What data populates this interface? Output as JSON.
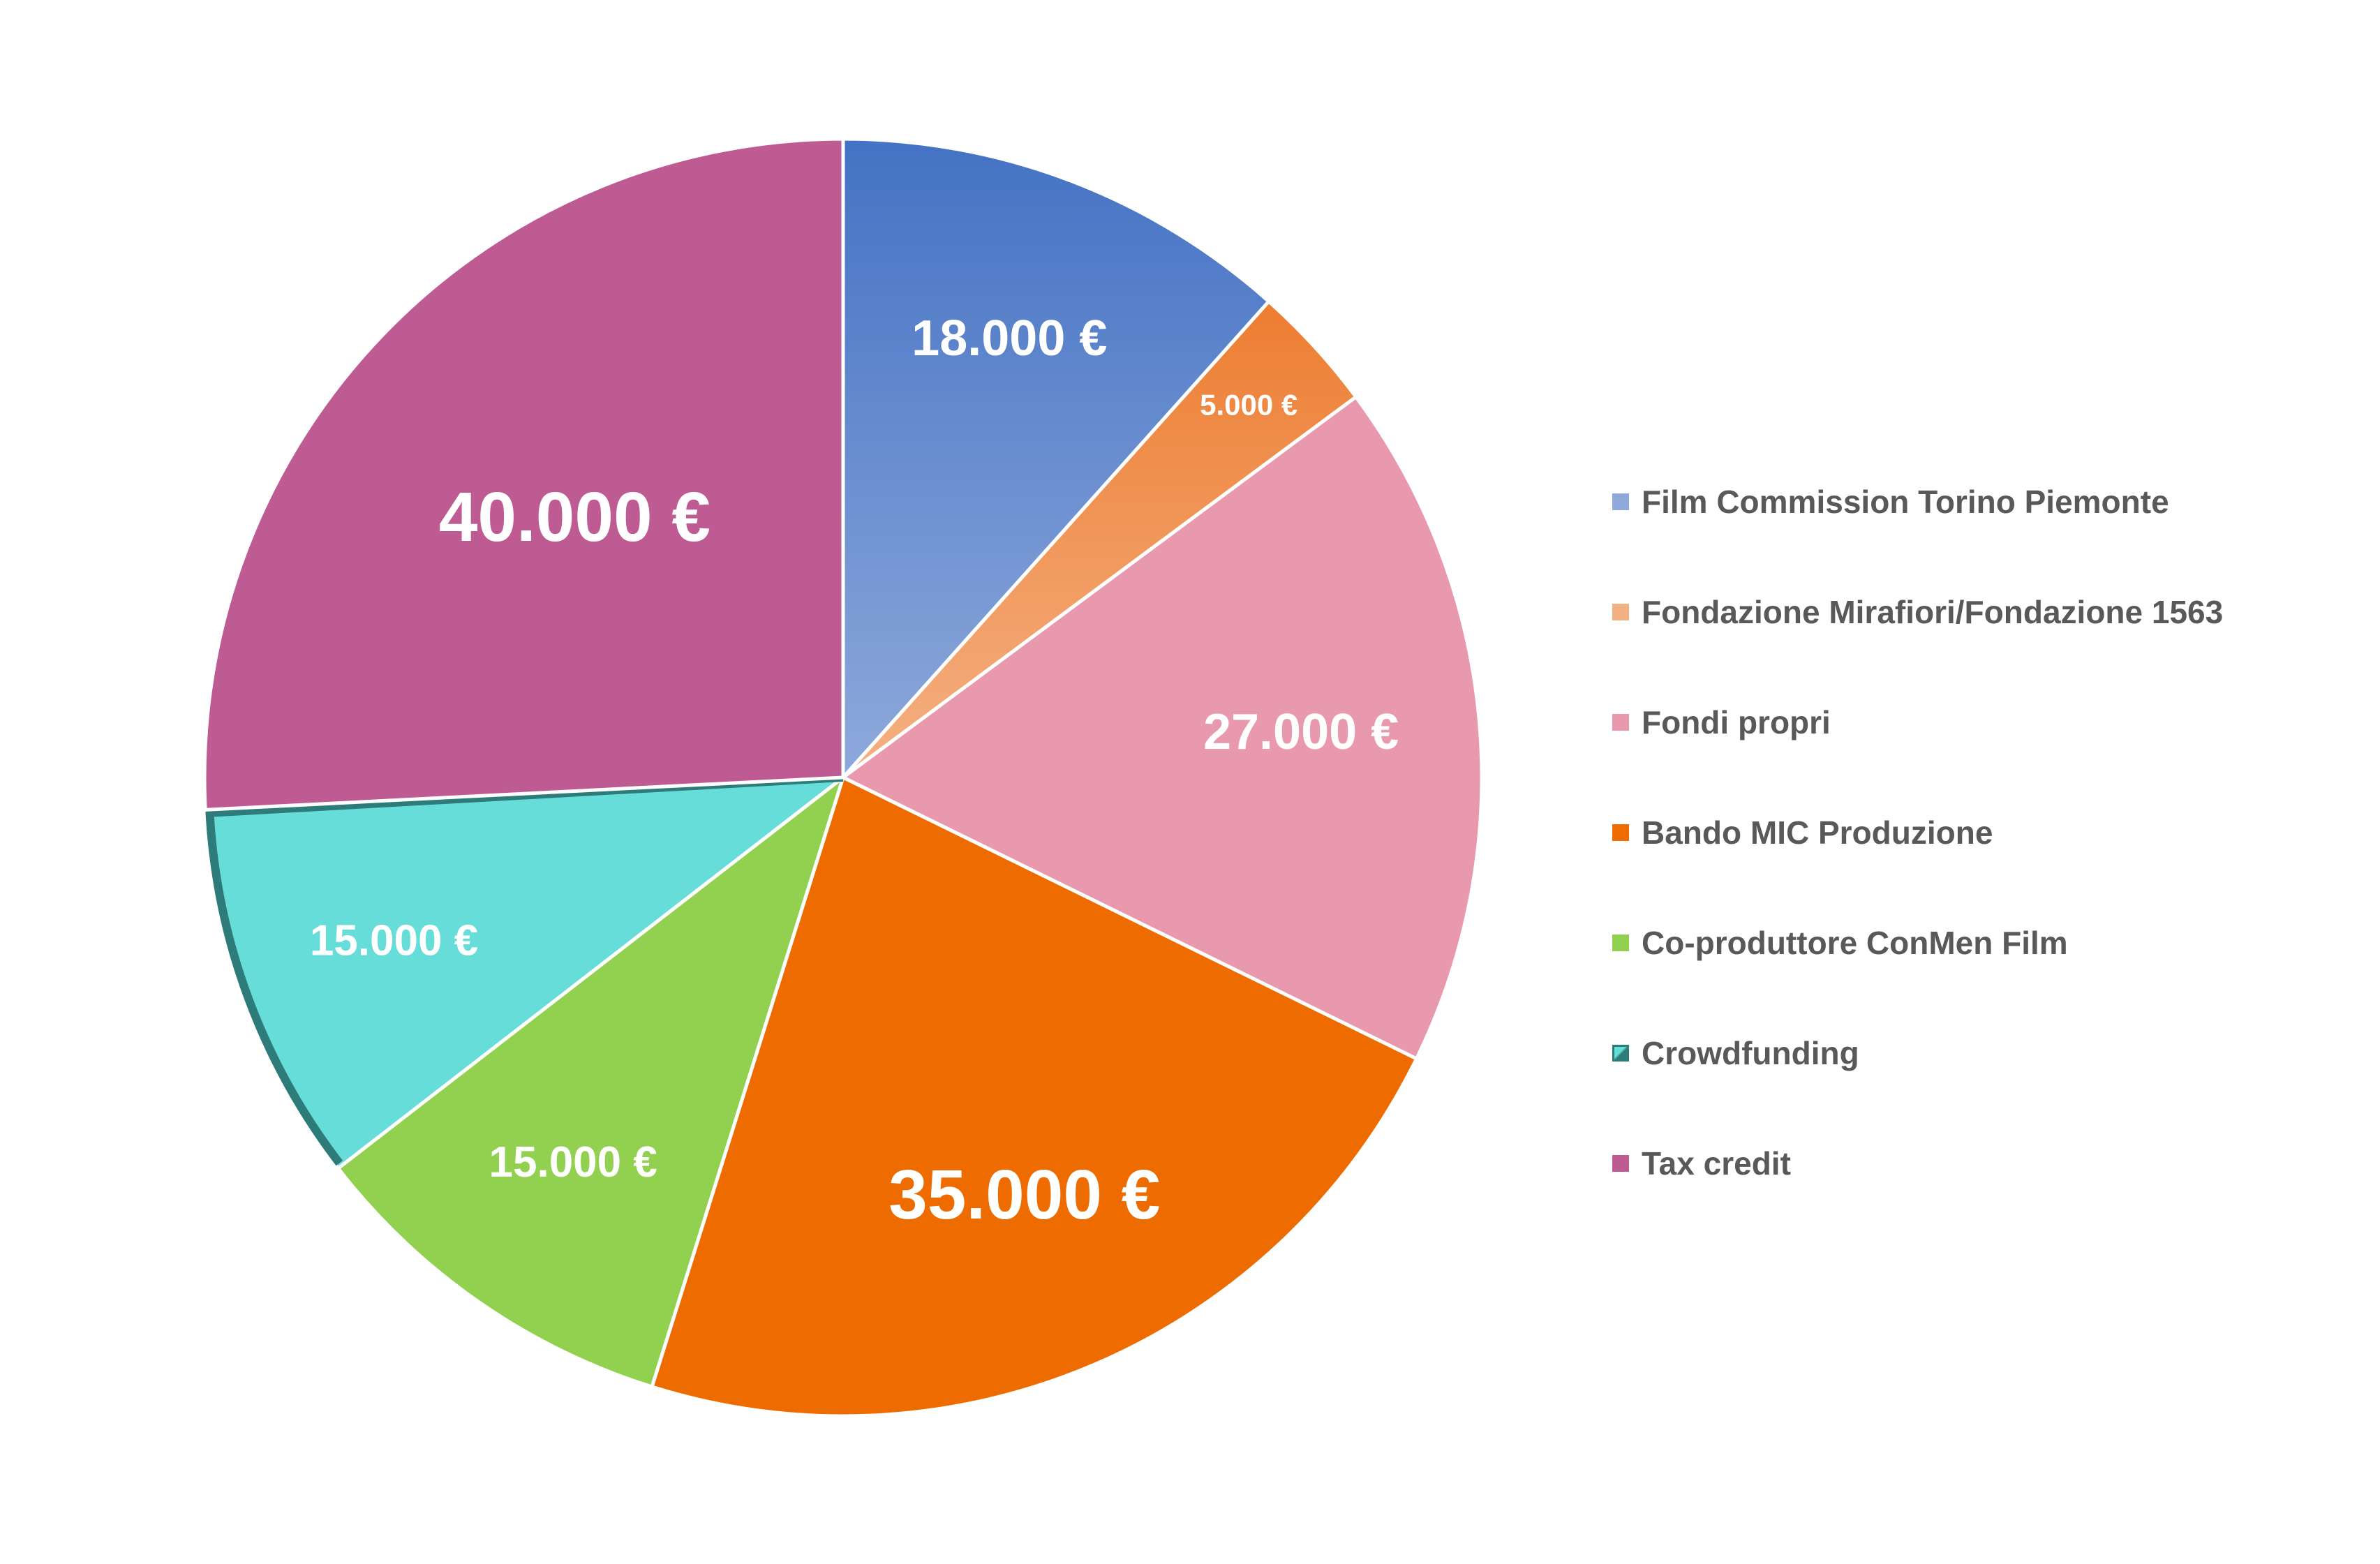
{
  "chart_data": {
    "type": "pie",
    "title": "",
    "currency": "€",
    "legend_position": "right",
    "slices": [
      {
        "name": "Film Commission Torino Piemonte",
        "value": 18000,
        "label": "18.000 €",
        "color_light": "#8EA9DB",
        "color_dark": "#4472C4",
        "legend_color": "#4472C4"
      },
      {
        "name": "Fondazione Mirafiori/Fondazione 1563",
        "value": 5000,
        "label": "5.000 €",
        "color_light": "#F4B183",
        "color_dark": "#ED7D31",
        "legend_color": "#F4B183"
      },
      {
        "name": "Fondi propri",
        "value": 27000,
        "label": "27.000 €",
        "color_light": "#E899AE",
        "color_dark": "#E899AE",
        "legend_color": "#E899AE"
      },
      {
        "name": "Bando MIC Produzione",
        "value": 35000,
        "label": "35.000 €",
        "color_light": "#EE6B00",
        "color_dark": "#EE6B00",
        "legend_color": "#EE6B00"
      },
      {
        "name": "Co-produttore ConMen Film",
        "value": 15000,
        "label": "15.000 €",
        "color_light": "#92D050",
        "color_dark": "#92D050",
        "legend_color": "#92D050"
      },
      {
        "name": "Crowdfunding",
        "value": 15000,
        "label": "15.000 €",
        "color_light": "#66DDD9",
        "color_dark": "#2E7C7A",
        "legend_color": "#3BA9A6"
      },
      {
        "name": "Tax credit",
        "value": 40000,
        "label": "40.000 €",
        "color_light": "#BE5B93",
        "color_dark": "#BE5B93",
        "legend_color": "#BE5B93"
      }
    ]
  }
}
